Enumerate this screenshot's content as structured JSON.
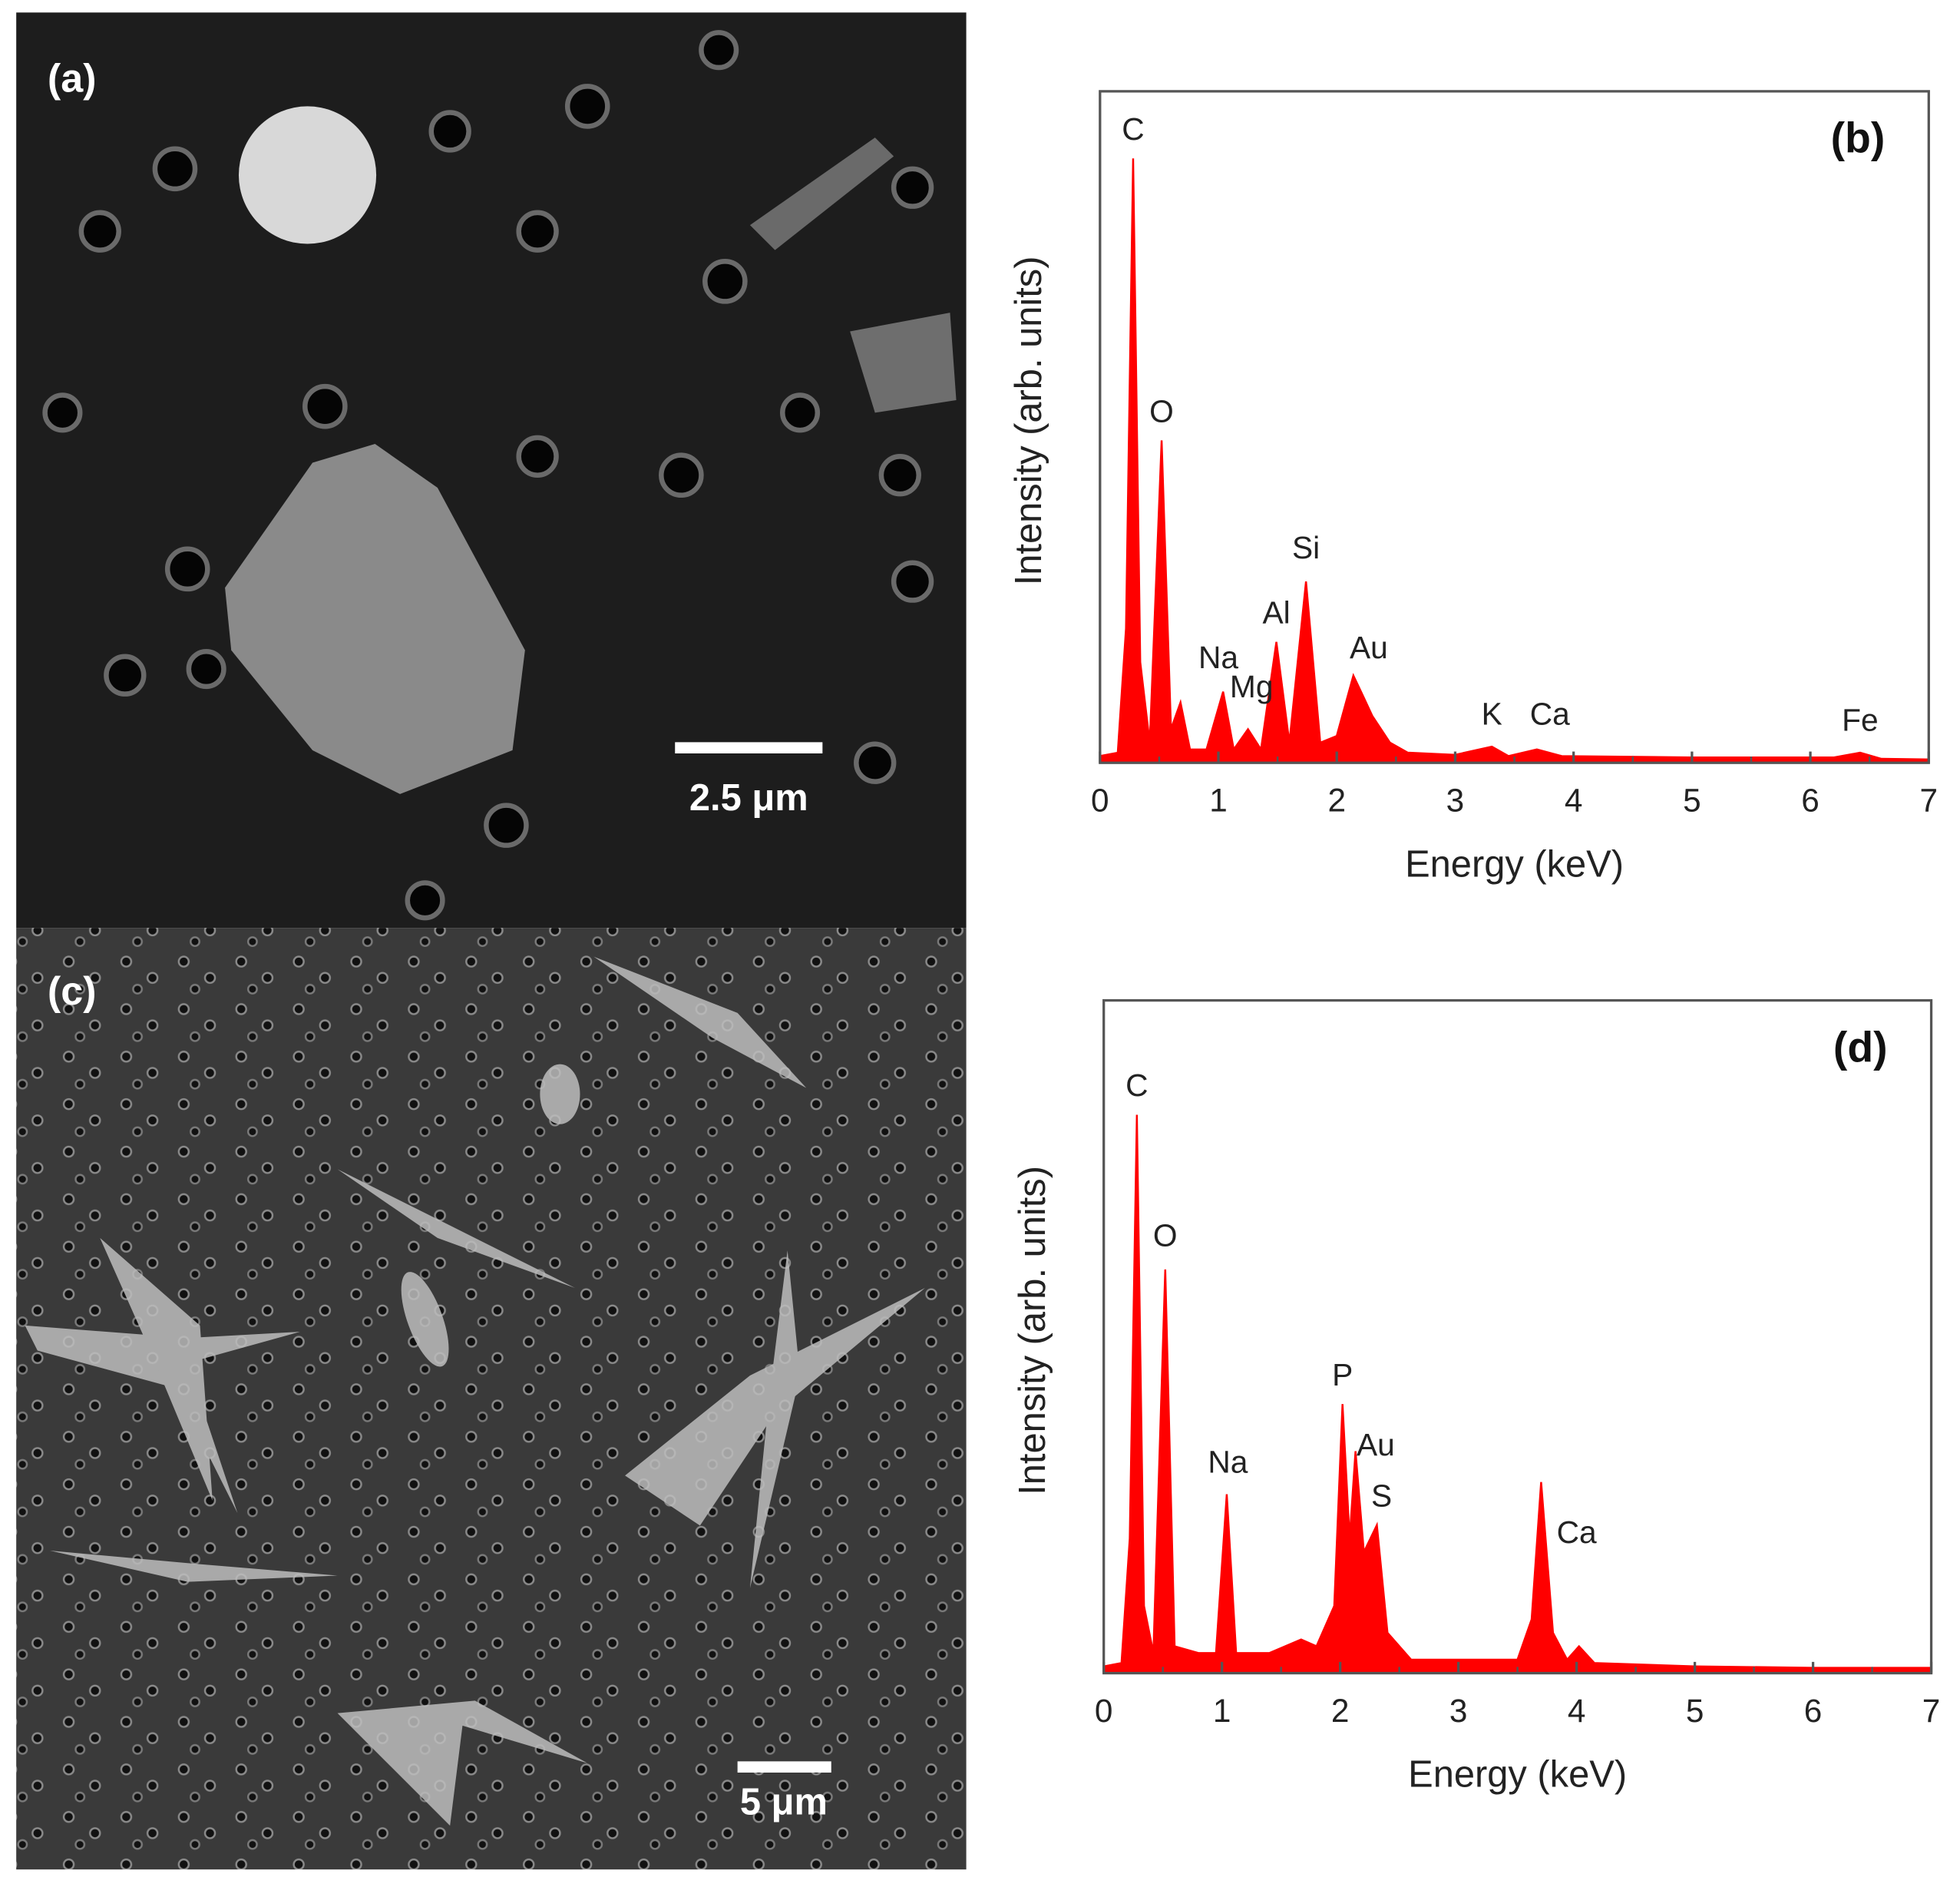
{
  "images": [
    {
      "panel_label": "(a)",
      "scale_bar": "2.5 μm"
    },
    {
      "panel_label": "(c)",
      "scale_bar": "5  μm"
    }
  ],
  "chart_data": [
    {
      "type": "area",
      "panel_label": "(b)",
      "x_label": "Energy  (keV)",
      "y_label": "Intensity  (arb. units)",
      "color": "#ff0000",
      "x": [
        0,
        0.15,
        0.22,
        0.28,
        0.34,
        0.42,
        0.52,
        0.6,
        0.68,
        0.76,
        0.9,
        1.04,
        1.13,
        1.25,
        1.36,
        1.49,
        1.6,
        1.74,
        1.86,
        2.0,
        2.14,
        2.22,
        2.3,
        2.45,
        2.6,
        3.0,
        3.31,
        3.45,
        3.69,
        3.9,
        5,
        6.2,
        6.42,
        6.6,
        7
      ],
      "values": [
        1,
        1.5,
        20,
        90,
        15,
        3,
        48,
        5,
        9,
        2,
        2,
        10.6,
        2,
        5,
        2,
        18,
        3,
        27,
        3,
        4,
        13,
        10,
        7,
        3,
        1.5,
        1.2,
        2.4,
        1,
        2,
        1,
        0.8,
        0.8,
        1.5,
        0.6,
        0.5
      ],
      "xlim": [
        0,
        7
      ],
      "xticks": [
        0,
        1,
        2,
        3,
        4,
        5,
        6,
        7
      ],
      "ylim": [
        0,
        100
      ],
      "annotations": [
        {
          "text": "C",
          "x": 0.28,
          "y": 94
        },
        {
          "text": "O",
          "x": 0.52,
          "y": 52
        },
        {
          "text": "Na",
          "x": 1.0,
          "y": 15.3
        },
        {
          "text": "Mg",
          "x": 1.28,
          "y": 11
        },
        {
          "text": "Al",
          "x": 1.49,
          "y": 22
        },
        {
          "text": "Si",
          "x": 1.74,
          "y": 31.7
        },
        {
          "text": "Au",
          "x": 2.27,
          "y": 16.8
        },
        {
          "text": "K",
          "x": 3.31,
          "y": 6.9
        },
        {
          "text": "Ca",
          "x": 3.8,
          "y": 6.9
        },
        {
          "text": "Fe",
          "x": 6.42,
          "y": 6
        }
      ]
    },
    {
      "type": "area",
      "panel_label": "(d)",
      "x_label": "Energy  (keV)",
      "y_label": "Intensity  (arb. units)",
      "color": "#ff0000",
      "x": [
        0,
        0.15,
        0.22,
        0.28,
        0.34,
        0.42,
        0.52,
        0.6,
        0.8,
        0.95,
        1.04,
        1.12,
        1.4,
        1.67,
        1.8,
        1.95,
        2.02,
        2.08,
        2.13,
        2.2,
        2.31,
        2.4,
        2.6,
        3.0,
        3.5,
        3.62,
        3.7,
        3.8,
        3.92,
        4.02,
        4.15,
        5,
        6,
        7
      ],
      "values": [
        1,
        1.5,
        20,
        83,
        10,
        3,
        60,
        4,
        3,
        3,
        26.6,
        3,
        3,
        5,
        4,
        10,
        40,
        20,
        33,
        18,
        22,
        6,
        2,
        2,
        2,
        8,
        28.4,
        6,
        2,
        4,
        1.5,
        1,
        0.8,
        0.8
      ],
      "xlim": [
        0,
        7
      ],
      "xticks": [
        0,
        1,
        2,
        3,
        4,
        5,
        6,
        7
      ],
      "ylim": [
        0,
        100
      ],
      "annotations": [
        {
          "text": "C",
          "x": 0.28,
          "y": 87
        },
        {
          "text": "O",
          "x": 0.52,
          "y": 64.7
        },
        {
          "text": "Na",
          "x": 1.05,
          "y": 31
        },
        {
          "text": "P",
          "x": 2.02,
          "y": 44
        },
        {
          "text": "Au",
          "x": 2.3,
          "y": 33.6
        },
        {
          "text": "S",
          "x": 2.35,
          "y": 26
        },
        {
          "text": "Ca",
          "x": 4.0,
          "y": 20.6
        }
      ]
    }
  ]
}
